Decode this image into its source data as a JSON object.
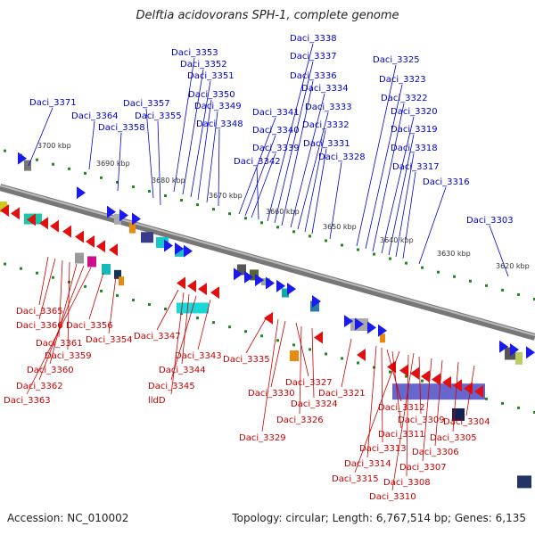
{
  "title": "Delftia acidovorans SPH-1, complete genome",
  "footer": {
    "accession": "Accession: NC_010002",
    "topology": "Topology: circular; Length: 6,767,514 bp; Genes: 6,135"
  },
  "scale_labels": [
    "3700 kbp",
    "3690 kbp",
    "3680 kbp",
    "3670 kbp",
    "3660 kbp",
    "3650 kbp",
    "3640 kbp",
    "3630 kbp",
    "3620 kbp"
  ],
  "top_labels": [
    "Daci_3371",
    "Daci_3364",
    "Daci_3358",
    "Daci_3357",
    "Daci_3355",
    "Daci_3353",
    "Daci_3352",
    "Daci_3351",
    "Daci_3350",
    "Daci_3349",
    "Daci_3348",
    "Daci_3341",
    "Daci_3340",
    "Daci_3339",
    "Daci_3342",
    "Daci_3338",
    "Daci_3337",
    "Daci_3336",
    "Daci_3334",
    "Daci_3333",
    "Daci_3332",
    "Daci_3331",
    "Daci_3328",
    "Daci_3325",
    "Daci_3323",
    "Daci_3322",
    "Daci_3320",
    "Daci_3319",
    "Daci_3318",
    "Daci_3317",
    "Daci_3316",
    "Daci_3303"
  ],
  "bottom_labels": [
    "Daci_3365",
    "Daci_3366",
    "Daci_3361",
    "Daci_3359",
    "Daci_3360",
    "Daci_3362",
    "Daci_3363",
    "Daci_3356",
    "Daci_3354",
    "Daci_3347",
    "Daci_3343",
    "Daci_3344",
    "Daci_3345",
    "lldD",
    "Daci_3335",
    "Daci_3327",
    "Daci_3330",
    "Daci_3324",
    "Daci_3326",
    "Daci_3329",
    "Daci_3321",
    "Daci_3312",
    "Daci_3309",
    "Daci_3304",
    "Daci_3311",
    "Daci_3305",
    "Daci_3313",
    "Daci_3306",
    "Daci_3314",
    "Daci_3307",
    "Daci_3315",
    "Daci_3308",
    "Daci_3310"
  ],
  "colors": {
    "forward": "#1a1aee",
    "reverse": "#e01010",
    "label_top": "#0000cc",
    "label_bottom": "#cc0000",
    "backbone": "#888888",
    "tick": "#228822"
  }
}
